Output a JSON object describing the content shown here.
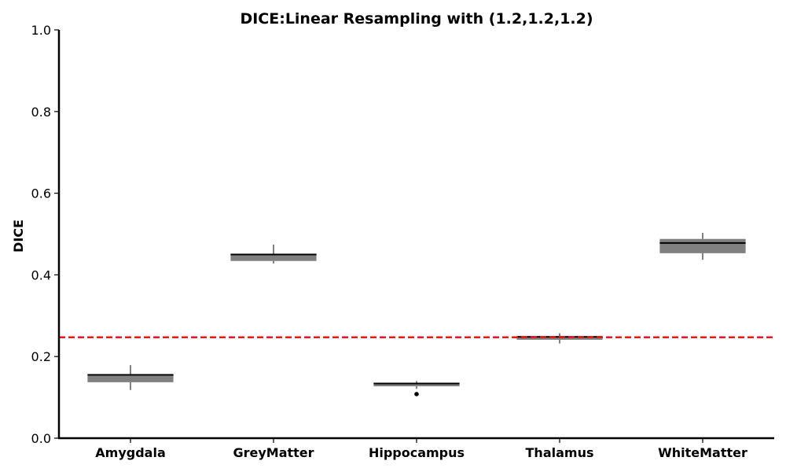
{
  "chart_data": {
    "type": "box",
    "title": "DICE:Linear Resampling with (1.2,1.2,1.2)",
    "xlabel": "",
    "ylabel": "DICE",
    "ylim": [
      0,
      1
    ],
    "yticks": [
      "0.0",
      "0.2",
      "0.4",
      "0.6",
      "0.8",
      "1.0"
    ],
    "categories": [
      "Amygdala",
      "GreyMatter",
      "Hippocampus",
      "Thalamus",
      "WhiteMatter"
    ],
    "boxes": [
      {
        "category": "Amygdala",
        "whisker_low": 0.118,
        "q1": 0.137,
        "median": 0.155,
        "q3": 0.156,
        "whisker_high": 0.179,
        "outliers": []
      },
      {
        "category": "GreyMatter",
        "whisker_low": 0.428,
        "q1": 0.434,
        "median": 0.45,
        "q3": 0.451,
        "whisker_high": 0.474,
        "outliers": []
      },
      {
        "category": "Hippocampus",
        "whisker_low": 0.121,
        "q1": 0.127,
        "median": 0.134,
        "q3": 0.135,
        "whisker_high": 0.14,
        "outliers": [
          0.108
        ]
      },
      {
        "category": "Thalamus",
        "whisker_low": 0.232,
        "q1": 0.241,
        "median": 0.248,
        "q3": 0.25,
        "whisker_high": 0.257,
        "outliers": []
      },
      {
        "category": "WhiteMatter",
        "whisker_low": 0.437,
        "q1": 0.453,
        "median": 0.478,
        "q3": 0.488,
        "whisker_high": 0.503,
        "outliers": []
      }
    ],
    "reference_line": {
      "value": 0.247,
      "style": "dashed",
      "color": "#e31a1c"
    },
    "box_color": "#808080",
    "median_color": "#000000",
    "grid": false,
    "legend": "none"
  }
}
